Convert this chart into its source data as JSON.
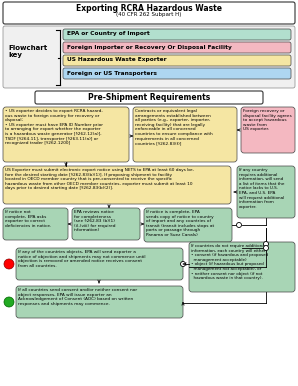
{
  "title": "Exporting RCRA Hazardous Waste",
  "subtitle": "(40 CFR 262 Subpart H)",
  "key_items": [
    {
      "label": "EPA or Country of Import",
      "color": "#b2dfce"
    },
    {
      "label": "Foreign Importer or Recovery Or Disposal Facility",
      "color": "#f4b8c1"
    },
    {
      "label": "US Hazardous Waste Exporter",
      "color": "#f5e6a3"
    },
    {
      "label": "Foreign or US Transporters",
      "color": "#aed6f1"
    }
  ],
  "section_label": "Pre-Shipment Requirements",
  "color_green": "#a8d5b5",
  "color_pink": "#f4b8c1",
  "color_yellow": "#f5e6a3",
  "color_blue": "#aed6f1",
  "color_light_green": "#b2dfce"
}
